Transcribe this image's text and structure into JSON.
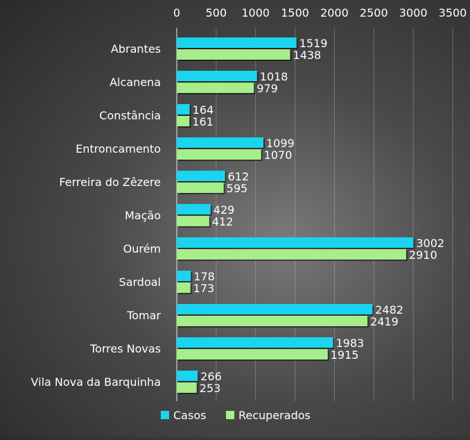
{
  "chart_data": {
    "type": "bar",
    "orientation": "horizontal",
    "categories": [
      "Abrantes",
      "Alcanena",
      "Constância",
      "Entroncamento",
      "Ferreira do Zêzere",
      "Mação",
      "Ourém",
      "Sardoal",
      "Tomar",
      "Torres Novas",
      "Vila Nova da Barquinha"
    ],
    "series": [
      {
        "name": "Casos",
        "color": "#1ad4f0",
        "values": [
          1519,
          1018,
          164,
          1099,
          612,
          429,
          3002,
          178,
          2482,
          1983,
          266
        ]
      },
      {
        "name": "Recuperados",
        "color": "#a6ee8a",
        "values": [
          1438,
          979,
          161,
          1070,
          595,
          412,
          2910,
          173,
          2419,
          1915,
          253
        ]
      }
    ],
    "xlim": [
      0,
      3500
    ],
    "xticks": [
      "0",
      "500",
      "1000",
      "1500",
      "2000",
      "2500",
      "3000",
      "3500"
    ],
    "grid": true,
    "axis_position": "top",
    "legend": "bottom",
    "title": "",
    "xlabel": "",
    "ylabel": ""
  }
}
